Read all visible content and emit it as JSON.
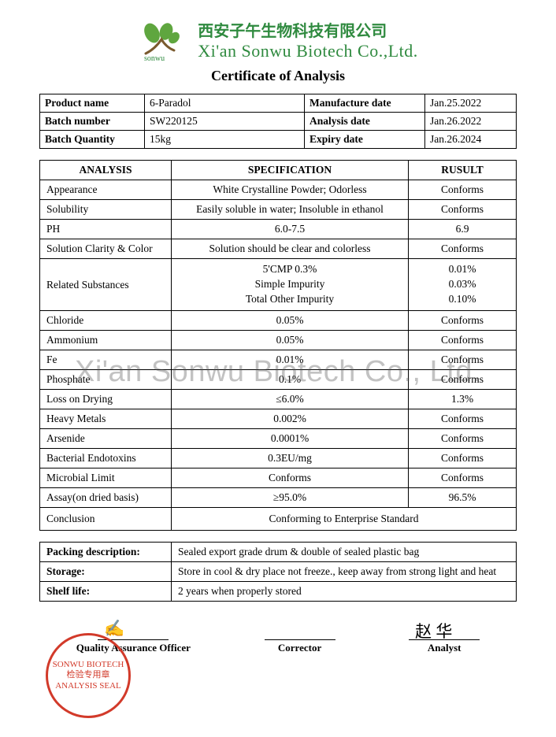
{
  "header": {
    "cn": "西安子午生物科技有限公司",
    "en": "Xi'an Sonwu Biotech Co.,Ltd.",
    "logo_leaf": "#5fa63f",
    "logo_brown": "#7a5a2e",
    "sonwu": "sonwu"
  },
  "doc_title": "Certificate of Analysis",
  "info": [
    {
      "l": "Product name",
      "lv": "6-Paradol",
      "r": "Manufacture date",
      "rv": "Jan.25.2022"
    },
    {
      "l": "Batch number",
      "lv": "SW220125",
      "r": "Analysis date",
      "rv": "Jan.26.2022"
    },
    {
      "l": "Batch Quantity",
      "lv": "15kg",
      "r": "Expiry date",
      "rv": "Jan.26.2024"
    }
  ],
  "analysis": {
    "headers": [
      "ANALYSIS",
      "SPECIFICATION",
      "RUSULT"
    ],
    "rows": [
      {
        "a": "Appearance",
        "s": "White Crystalline Powder; Odorless",
        "r": "Conforms"
      },
      {
        "a": "Solubility",
        "s": "Easily soluble in water; Insoluble in ethanol",
        "r": "Conforms"
      },
      {
        "a": "PH",
        "s": "6.0-7.5",
        "r": "6.9"
      },
      {
        "a": "Solution Clarity & Color",
        "s": "Solution should be clear and colorless",
        "r": "Conforms"
      },
      {
        "a": "Related Substances",
        "s": "5'CMP 0.3%\nSimple Impurity\nTotal Other Impurity",
        "r": "0.01%\n0.03%\n0.10%"
      },
      {
        "a": "Chloride",
        "s": "0.05%",
        "r": "Conforms"
      },
      {
        "a": "Ammonium",
        "s": "0.05%",
        "r": "Conforms"
      },
      {
        "a": "Fe",
        "s": "0.01%",
        "r": "Conforms"
      },
      {
        "a": "Phosphate",
        "s": "0.1%",
        "r": "Conforms"
      },
      {
        "a": "Loss on Drying",
        "s": "≤6.0%",
        "r": "1.3%"
      },
      {
        "a": "Heavy Metals",
        "s": "0.002%",
        "r": "Conforms"
      },
      {
        "a": "Arsenide",
        "s": "0.0001%",
        "r": "Conforms"
      },
      {
        "a": "Bacterial Endotoxins",
        "s": "0.3EU/mg",
        "r": "Conforms"
      },
      {
        "a": "Microbial Limit",
        "s": "Conforms",
        "r": "Conforms"
      },
      {
        "a": "Assay(on dried basis)",
        "s": "≥95.0%",
        "r": "96.5%"
      }
    ],
    "conclusion": {
      "label": "Conclusion",
      "value": "Conforming to Enterprise Standard"
    }
  },
  "packing": [
    {
      "k": "Packing description:",
      "v": "Sealed export grade drum & double of sealed plastic bag"
    },
    {
      "k": "Storage:",
      "v": "Store in cool & dry place not freeze., keep away from strong light and heat"
    },
    {
      "k": "Shelf life:",
      "v": "2 years when properly stored"
    }
  ],
  "signatures": {
    "qa": "Quality Assurance Officer",
    "corrector": "Corrector",
    "analyst": "Analyst",
    "analyst_sig": "赵 华"
  },
  "stamp": {
    "lines": [
      "SONWU BIOTECH",
      "检验专用章",
      "ANALYSIS SEAL"
    ],
    "color": "#d23a2a"
  },
  "watermark": "Xi'an Sonwu Biotech Co., Ltd."
}
